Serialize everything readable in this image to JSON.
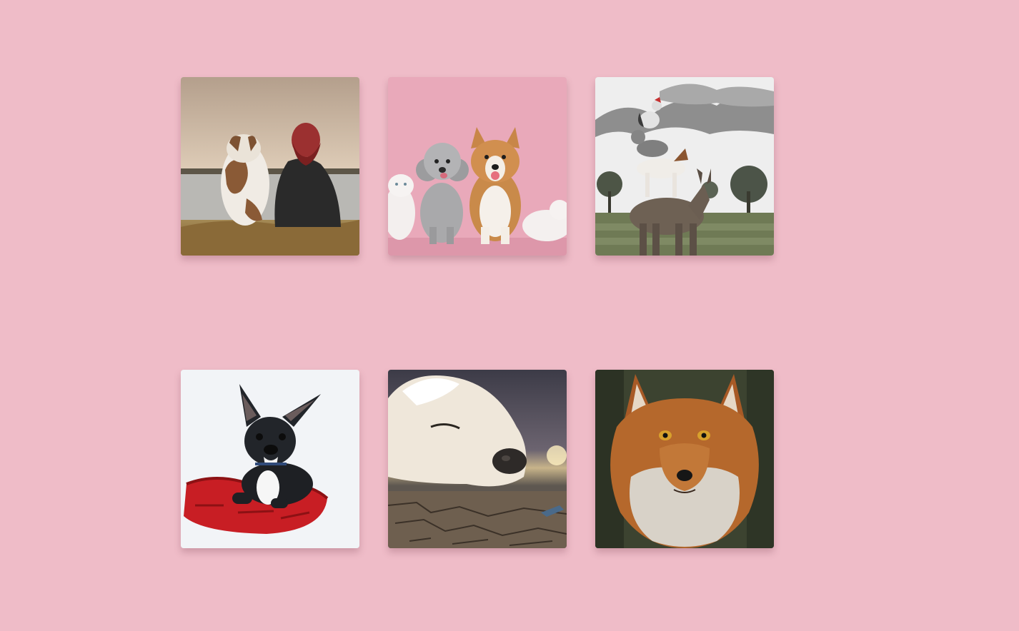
{
  "page": {
    "background": "#efbcc8"
  },
  "gallery": {
    "items": [
      {
        "id": "photo-1",
        "subject": "dog-and-person-by-lake",
        "accent": "#a07a5c"
      },
      {
        "id": "photo-2",
        "subject": "poodle-corgi-cats-pink",
        "accent": "#e9a9ba"
      },
      {
        "id": "photo-3",
        "subject": "animal-stack-donkey-dog-cat-rooster",
        "accent": "#8c8c8c"
      },
      {
        "id": "photo-4",
        "subject": "french-bulldog-on-red-cushion",
        "accent": "#c81e24"
      },
      {
        "id": "photo-5",
        "subject": "sleeping-white-dog-desert",
        "accent": "#6b5a4a"
      },
      {
        "id": "photo-6",
        "subject": "red-fox-portrait",
        "accent": "#b0642a"
      }
    ]
  }
}
